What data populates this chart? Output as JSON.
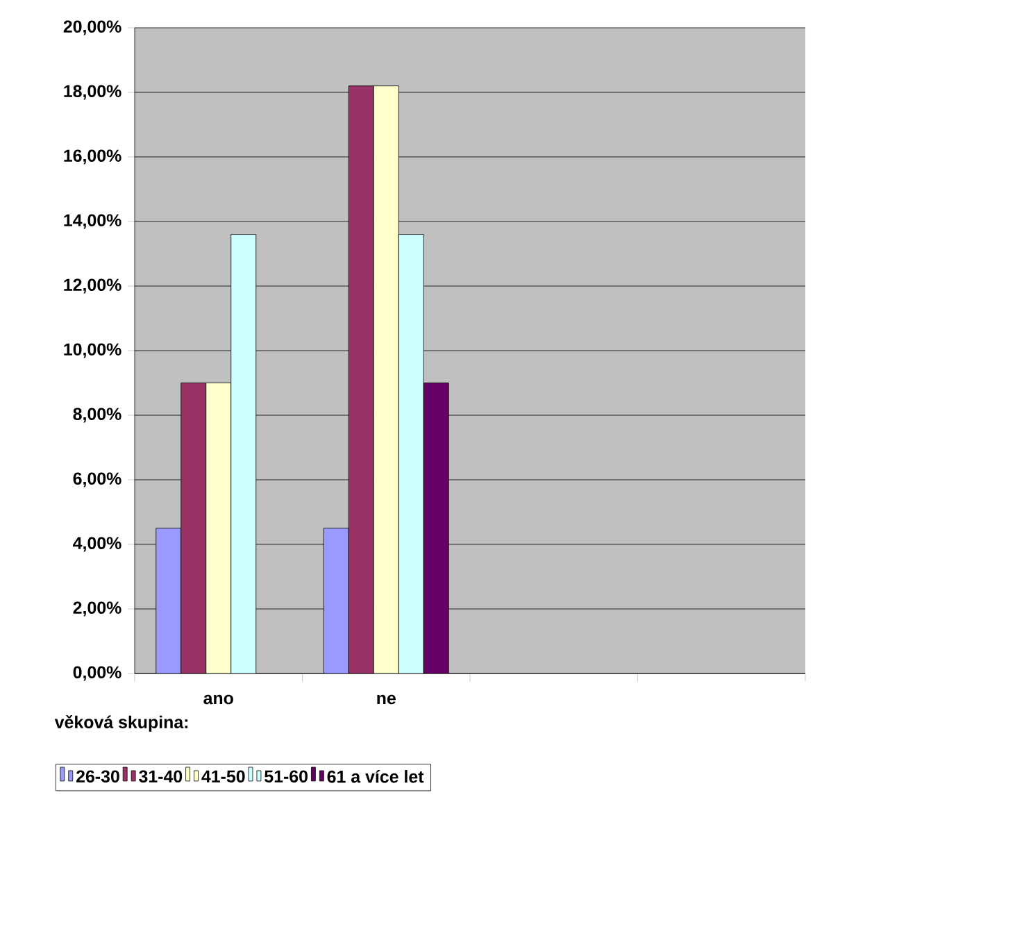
{
  "chart_data": {
    "type": "bar",
    "legend_title": "věková skupina:",
    "legend": "bottom",
    "grid": "y",
    "categories": [
      "ano",
      "ne",
      null,
      null
    ],
    "ylim": [
      0,
      20
    ],
    "yticks": [
      {
        "value": 0,
        "label": "0,00%"
      },
      {
        "value": 2,
        "label": "2,00%"
      },
      {
        "value": 4,
        "label": "4,00%"
      },
      {
        "value": 6,
        "label": "6,00%"
      },
      {
        "value": 8,
        "label": "8,00%"
      },
      {
        "value": 10,
        "label": "10,00%"
      },
      {
        "value": 12,
        "label": "12,00%"
      },
      {
        "value": 14,
        "label": "14,00%"
      },
      {
        "value": 16,
        "label": "16,00%"
      },
      {
        "value": 18,
        "label": "18,00%"
      },
      {
        "value": 20,
        "label": "20,00%"
      }
    ],
    "series": [
      {
        "name": "26-30",
        "color": "#9999ff",
        "values": [
          4.5,
          4.5,
          null,
          null
        ]
      },
      {
        "name": "31-40",
        "color": "#993366",
        "values": [
          9.0,
          18.2,
          null,
          null
        ]
      },
      {
        "name": "41-50",
        "color": "#ffffcc",
        "values": [
          9.0,
          18.2,
          null,
          null
        ]
      },
      {
        "name": "51-60",
        "color": "#ccffff",
        "values": [
          13.6,
          13.6,
          null,
          null
        ]
      },
      {
        "name": "61 a více let",
        "color": "#660066",
        "values": [
          null,
          9.0,
          null,
          null
        ]
      }
    ]
  }
}
